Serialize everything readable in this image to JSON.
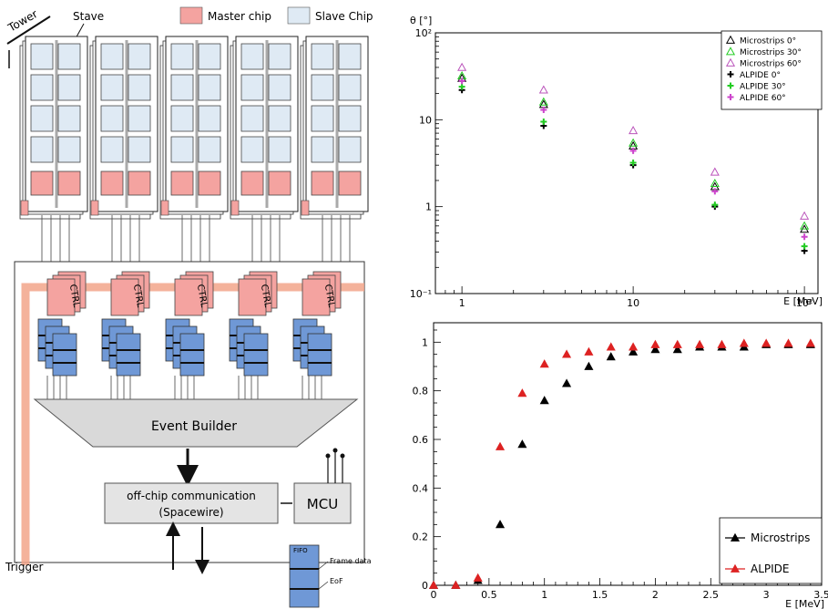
{
  "diagram": {
    "tower_label": "Tower",
    "stave_label": "Stave",
    "legend": [
      {
        "label": "Master chip",
        "color": "#f4a3a0"
      },
      {
        "label": "Slave Chip",
        "color": "#dfeaf4"
      }
    ],
    "ctrl_label": "CTRL",
    "event_builder_label": "Event Builder",
    "comm_label_line1": "off-chip communication",
    "comm_label_line2": "(Spacewire)",
    "mcu_label": "MCU",
    "trigger_label": "Trigger",
    "fifo_label": "FIFO",
    "frame_data_label": "Frame data",
    "eof_label": "EoF",
    "colors": {
      "master": "#f4a3a0",
      "slave": "#dfeaf4",
      "fifo": "#6f98d6",
      "trigger": "#f2a58a",
      "builder": "#d9d9d9"
    }
  },
  "chart_data": [
    {
      "type": "scatter",
      "xscale": "log",
      "yscale": "log",
      "xlim": [
        0.7,
        120
      ],
      "ylim": [
        0.1,
        100
      ],
      "ylabel": "θ [°]",
      "xlabel": "E [MeV]",
      "xticks": [
        {
          "v": 1,
          "label": "1"
        },
        {
          "v": 10,
          "label": "10"
        },
        {
          "v": 100,
          "label": "10²"
        }
      ],
      "yticks": [
        {
          "v": 0.1,
          "label": "10⁻¹"
        },
        {
          "v": 1,
          "label": "1"
        },
        {
          "v": 10,
          "label": "10"
        },
        {
          "v": 100,
          "label": "10²"
        }
      ],
      "legend_position": "top-right",
      "x": [
        1,
        3,
        10,
        30,
        100
      ],
      "series": [
        {
          "name": "Microstrips 0°",
          "marker": "triangle",
          "color": "#000000",
          "values": [
            30,
            15,
            5.0,
            1.7,
            0.55
          ]
        },
        {
          "name": "Microstrips 30°",
          "marker": "triangle",
          "color": "#22cc22",
          "values": [
            32,
            16,
            5.4,
            1.85,
            0.6
          ]
        },
        {
          "name": "Microstrips 60°",
          "marker": "triangle",
          "color": "#bb55bb",
          "values": [
            40,
            22,
            7.5,
            2.5,
            0.78
          ]
        },
        {
          "name": "ALPIDE 0°",
          "marker": "plus",
          "color": "#000000",
          "values": [
            22,
            8.5,
            3.0,
            1.0,
            0.31
          ]
        },
        {
          "name": "ALPIDE 30°",
          "marker": "plus",
          "color": "#22cc22",
          "values": [
            24,
            9.5,
            3.2,
            1.05,
            0.35
          ]
        },
        {
          "name": "ALPIDE 60°",
          "marker": "plus",
          "color": "#cc44cc",
          "values": [
            28,
            13,
            4.4,
            1.5,
            0.45
          ]
        }
      ]
    },
    {
      "type": "scatter",
      "xlim": [
        0,
        3.5
      ],
      "ylim": [
        0,
        1.08
      ],
      "xlabel": "E [MeV]",
      "ylabel": "",
      "xticks": [
        {
          "v": 0,
          "label": "0"
        },
        {
          "v": 0.5,
          "label": "0.5"
        },
        {
          "v": 1,
          "label": "1"
        },
        {
          "v": 1.5,
          "label": "1.5"
        },
        {
          "v": 2,
          "label": "2"
        },
        {
          "v": 2.5,
          "label": "2.5"
        },
        {
          "v": 3,
          "label": "3"
        },
        {
          "v": 3.5,
          "label": "3.5"
        }
      ],
      "yticks": [
        {
          "v": 0,
          "label": "0"
        },
        {
          "v": 0.2,
          "label": "0.2"
        },
        {
          "v": 0.4,
          "label": "0.4"
        },
        {
          "v": 0.6,
          "label": "0.6"
        },
        {
          "v": 0.8,
          "label": "0.8"
        },
        {
          "v": 1,
          "label": "1"
        }
      ],
      "legend_position": "bottom-right",
      "series": [
        {
          "name": "Microstrips",
          "marker": "triangle",
          "color": "#000000",
          "x": [
            0,
            0.2,
            0.4,
            0.6,
            0.8,
            1.0,
            1.2,
            1.4,
            1.6,
            1.8,
            2.0,
            2.2,
            2.4,
            2.6,
            2.8,
            3.0,
            3.2,
            3.4
          ],
          "values": [
            0,
            0,
            0.02,
            0.25,
            0.58,
            0.76,
            0.83,
            0.9,
            0.94,
            0.96,
            0.97,
            0.97,
            0.98,
            0.98,
            0.98,
            0.99,
            0.99,
            0.99
          ]
        },
        {
          "name": "ALPIDE",
          "marker": "triangle",
          "color": "#dd2222",
          "x": [
            0,
            0.2,
            0.4,
            0.6,
            0.8,
            1.0,
            1.2,
            1.4,
            1.6,
            1.8,
            2.0,
            2.2,
            2.4,
            2.6,
            2.8,
            3.0,
            3.2,
            3.4
          ],
          "values": [
            0,
            0,
            0.03,
            0.57,
            0.79,
            0.91,
            0.95,
            0.96,
            0.98,
            0.98,
            0.99,
            0.99,
            0.99,
            0.99,
            0.995,
            0.995,
            0.995,
            0.995
          ]
        }
      ]
    }
  ]
}
